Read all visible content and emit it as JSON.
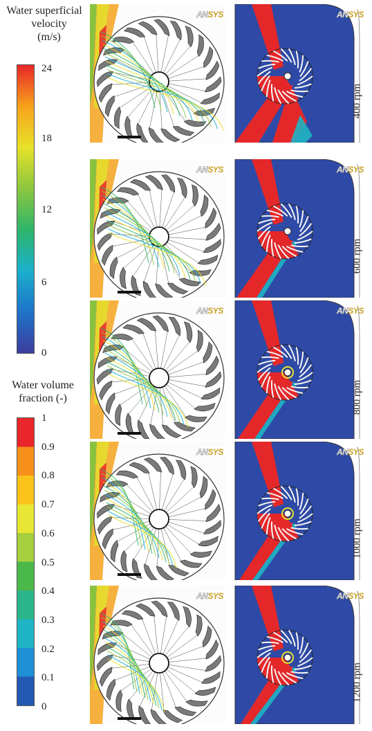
{
  "velocity_legend": {
    "title_lines": [
      "Water superficial",
      "velocity",
      "(m/s)"
    ],
    "ticks": [
      "24",
      "18",
      "12",
      "6",
      "0"
    ],
    "gradient": [
      "#3d3d9e",
      "#1e73c9",
      "#1bb0cc",
      "#2fb56a",
      "#8cc63f",
      "#e7e22a",
      "#f7a21b",
      "#e9262b"
    ]
  },
  "fraction_legend": {
    "title_lines": [
      "Water volume",
      "fraction (-)"
    ],
    "ticks": [
      "1",
      "0.9",
      "0.8",
      "0.7",
      "0.6",
      "0.5",
      "0.4",
      "0.3",
      "0.2",
      "0.1",
      "0"
    ],
    "bands": [
      "#e9262b",
      "#f7901b",
      "#fbc31a",
      "#e8e634",
      "#a4cf3e",
      "#4bb84a",
      "#2cb58a",
      "#1fb4c4",
      "#1f8fd6",
      "#2459b3"
    ]
  },
  "rows": [
    {
      "rpm": "400 rpm"
    },
    {
      "rpm": "600 rpm"
    },
    {
      "rpm": "800 rpm"
    },
    {
      "rpm": "1000 rpm"
    },
    {
      "rpm": "1200 rpm"
    }
  ],
  "brand": {
    "part1": "AN",
    "part2": "SYS"
  },
  "colors": {
    "domain_blue": "#2e4aa6",
    "jet_red": "#e4282a",
    "runner_gray": "#7a7a7a"
  }
}
